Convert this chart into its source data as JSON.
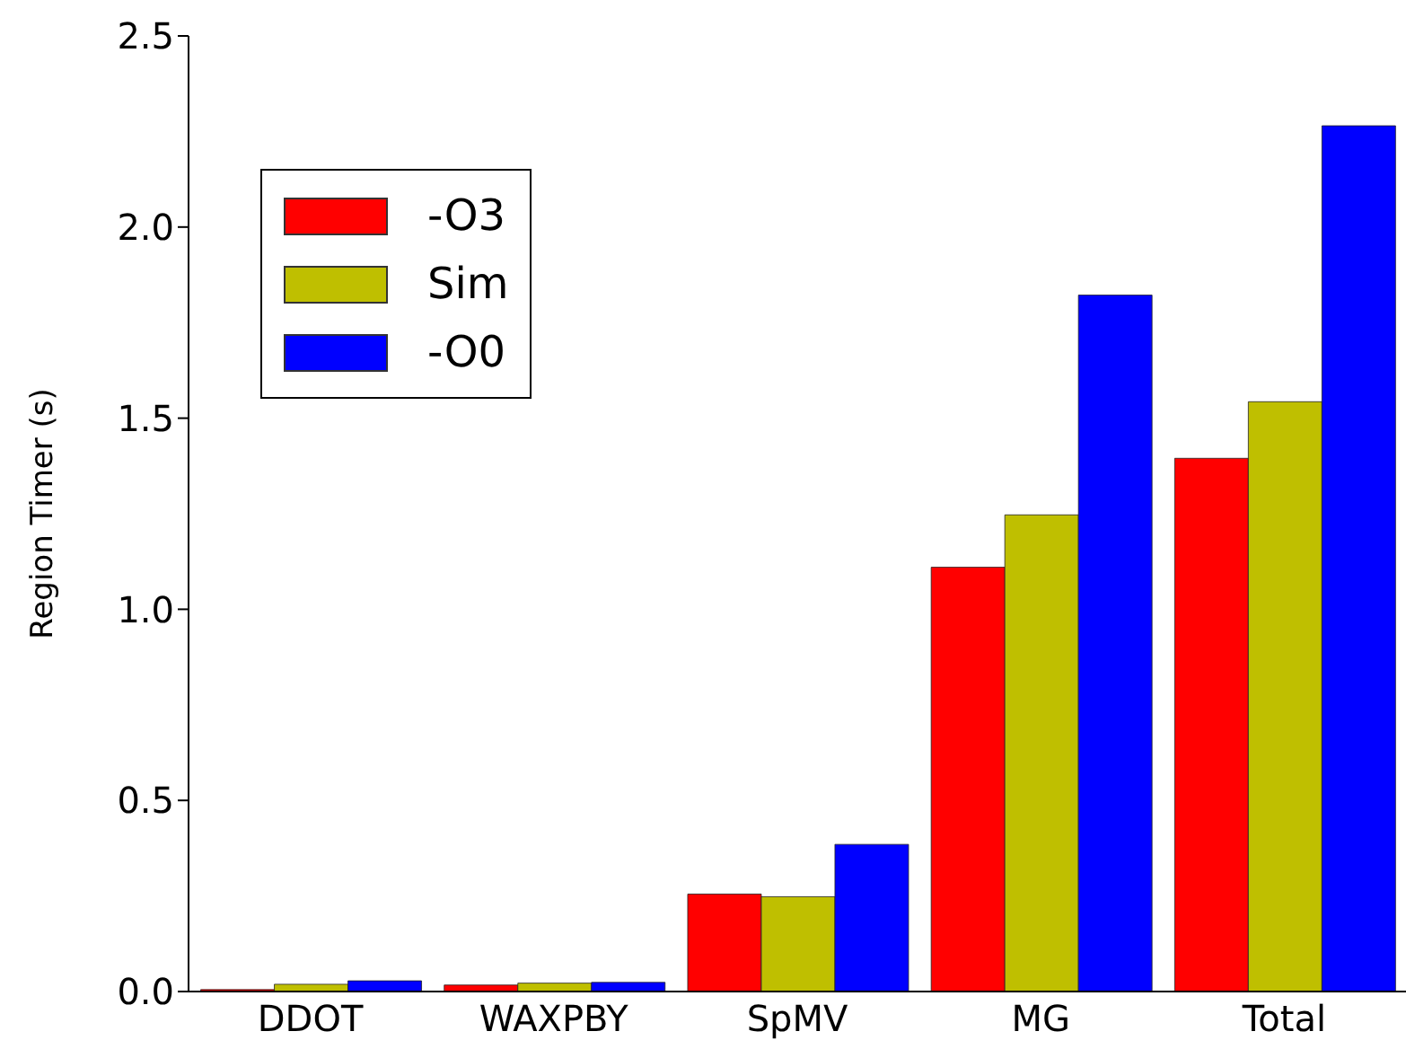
{
  "chart_data": {
    "type": "bar",
    "ylabel": "Region Timer (s)",
    "categories": [
      "DDOT",
      "WAXPBY",
      "SpMV",
      "MG",
      "Total"
    ],
    "series": [
      {
        "name": "-O3",
        "color": "#ff0000",
        "values": [
          0.005,
          0.017,
          0.255,
          1.11,
          1.395
        ]
      },
      {
        "name": "Sim",
        "color": "#bfbf00",
        "values": [
          0.019,
          0.022,
          0.248,
          1.247,
          1.543
        ]
      },
      {
        "name": "-O0",
        "color": "#0000ff",
        "values": [
          0.028,
          0.024,
          0.385,
          1.822,
          2.265
        ]
      }
    ],
    "ylim": [
      0,
      2.5
    ],
    "yticks": [
      {
        "value": 0,
        "label": "0.0"
      },
      {
        "value": 0.5,
        "label": "0.5"
      },
      {
        "value": 1,
        "label": "1.0"
      },
      {
        "value": 1.5,
        "label": "1.5"
      },
      {
        "value": 2,
        "label": "2.0"
      },
      {
        "value": 2.5,
        "label": "2.5"
      }
    ],
    "grid": false,
    "legend": "top left"
  }
}
